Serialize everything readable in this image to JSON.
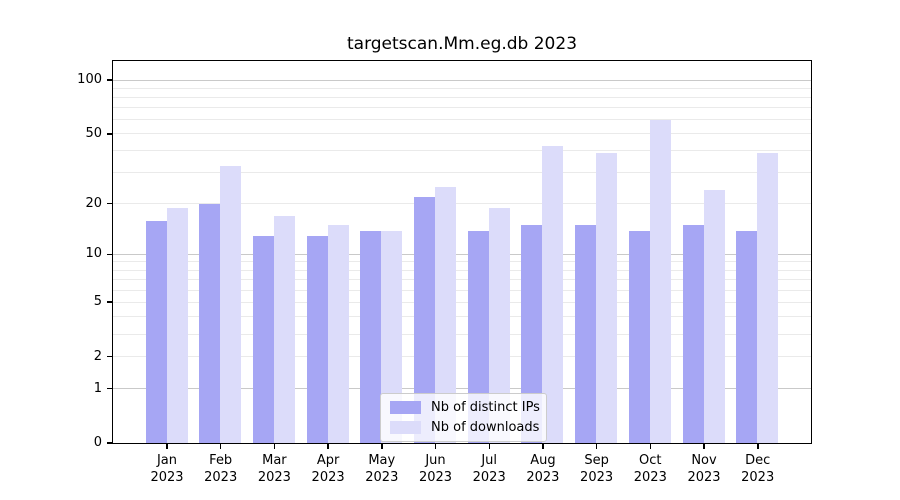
{
  "chart_data": {
    "type": "bar",
    "title": "targetscan.Mm.eg.db 2023",
    "categories": [
      "Jan",
      "Feb",
      "Mar",
      "Apr",
      "May",
      "Jun",
      "Jul",
      "Aug",
      "Sep",
      "Oct",
      "Nov",
      "Dec"
    ],
    "x_tick_year": "2023",
    "series": [
      {
        "name": "Nb of distinct IPs",
        "color": "#a6a6f4",
        "values": [
          16,
          20,
          13,
          13,
          14,
          22,
          14,
          15,
          15,
          14,
          15,
          14
        ]
      },
      {
        "name": "Nb of downloads",
        "color": "#dcdcfa",
        "values": [
          19,
          33,
          17,
          15,
          14,
          25,
          19,
          43,
          39,
          60,
          24,
          39
        ]
      }
    ],
    "y_axis": {
      "scale": "log1p",
      "tick_values": [
        0,
        1,
        2,
        5,
        10,
        20,
        50,
        100
      ],
      "range": [
        0,
        115
      ]
    },
    "grid": {
      "major_values": [
        1,
        10,
        100
      ],
      "minor_values": [
        2,
        3,
        4,
        5,
        6,
        7,
        8,
        9,
        20,
        30,
        40,
        50,
        60,
        70,
        80,
        90
      ],
      "major_color": "#c9c9c9",
      "minor_color": "#eaeaea"
    },
    "legend_position": "bottom-center",
    "xlabel": "",
    "ylabel": ""
  }
}
